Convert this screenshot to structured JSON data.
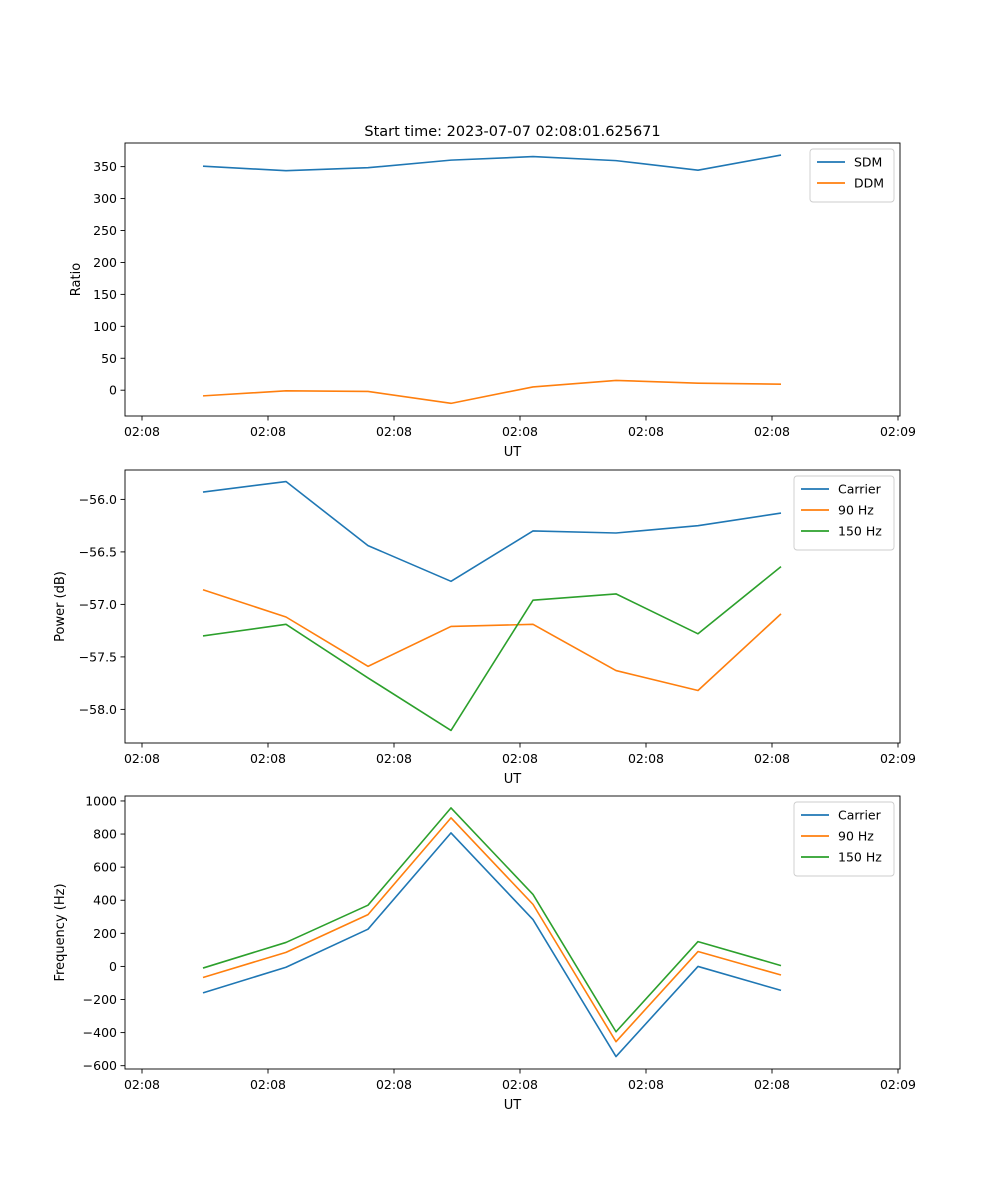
{
  "figure": {
    "title": "Start time: 2023-07-07 02:08:01.625671"
  },
  "chart_data": [
    {
      "type": "line",
      "xlabel": "UT",
      "ylabel": "Ratio",
      "x_tick_labels": [
        "02:08",
        "02:08",
        "02:08",
        "02:08",
        "02:08",
        "02:08",
        "02:09"
      ],
      "y_ticks": [
        0,
        50,
        100,
        150,
        200,
        250,
        300,
        350
      ],
      "y_tick_labels": [
        "0",
        "50",
        "100",
        "150",
        "200",
        "250",
        "300",
        "350"
      ],
      "ylim": [
        -40.4,
        387
      ],
      "legend_position": "top-right",
      "series": [
        {
          "name": "SDM",
          "color": "#1f77b4",
          "values": [
            350.7,
            343.6,
            348.3,
            360.2,
            365.7,
            359.4,
            344.4,
            368.1
          ]
        },
        {
          "name": "DDM",
          "color": "#ff7f0e",
          "values": [
            -8.9,
            -1.0,
            -2.0,
            -20.6,
            5.1,
            15.3,
            11.0,
            9.4
          ]
        }
      ]
    },
    {
      "type": "line",
      "xlabel": "UT",
      "ylabel": "Power (dB)",
      "x_tick_labels": [
        "02:08",
        "02:08",
        "02:08",
        "02:08",
        "02:08",
        "02:08",
        "02:09"
      ],
      "y_ticks": [
        -58.0,
        -57.5,
        -57.0,
        -56.5,
        -56.0
      ],
      "y_tick_labels": [
        "−58.0",
        "−57.5",
        "−57.0",
        "−56.5",
        "−56.0"
      ],
      "ylim": [
        -58.32,
        -55.72
      ],
      "legend_position": "top-right",
      "series": [
        {
          "name": "Carrier",
          "color": "#1f77b4",
          "values": [
            -55.93,
            -55.83,
            -56.44,
            -56.78,
            -56.3,
            -56.32,
            -56.25,
            -56.13
          ]
        },
        {
          "name": "90 Hz",
          "color": "#ff7f0e",
          "values": [
            -56.86,
            -57.12,
            -57.59,
            -57.21,
            -57.19,
            -57.63,
            -57.82,
            -57.09
          ]
        },
        {
          "name": "150 Hz",
          "color": "#2ca02c",
          "values": [
            -57.3,
            -57.19,
            -57.7,
            -58.2,
            -56.96,
            -56.9,
            -57.28,
            -56.64
          ]
        }
      ]
    },
    {
      "type": "line",
      "xlabel": "UT",
      "ylabel": "Frequency (Hz)",
      "x_tick_labels": [
        "02:08",
        "02:08",
        "02:08",
        "02:08",
        "02:08",
        "02:08",
        "02:09"
      ],
      "y_ticks": [
        -600,
        -400,
        -200,
        0,
        200,
        400,
        600,
        800,
        1000
      ],
      "y_tick_labels": [
        "−600",
        "−400",
        "−200",
        "0",
        "200",
        "400",
        "600",
        "800",
        "1000"
      ],
      "ylim": [
        -620,
        1030
      ],
      "legend_position": "top-right",
      "series": [
        {
          "name": "Carrier",
          "color": "#1f77b4",
          "values": [
            -160,
            -5,
            225,
            807,
            283,
            -545,
            0,
            -145
          ]
        },
        {
          "name": "90 Hz",
          "color": "#ff7f0e",
          "values": [
            -67,
            85,
            313,
            898,
            375,
            -455,
            90,
            -52
          ]
        },
        {
          "name": "150 Hz",
          "color": "#2ca02c",
          "values": [
            -10,
            145,
            370,
            958,
            435,
            -395,
            150,
            5
          ]
        }
      ]
    }
  ]
}
